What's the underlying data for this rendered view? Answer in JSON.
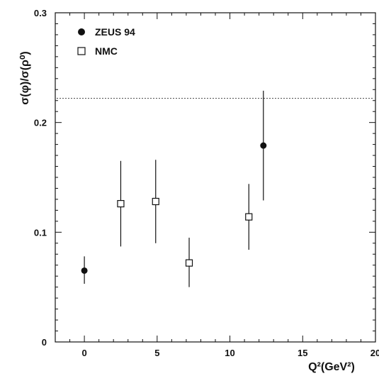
{
  "chart_data": {
    "type": "scatter",
    "xlabel": "Q²(GeV²)",
    "ylabel": "σ(φ)/σ(ρ⁰)",
    "xlim": [
      -2,
      20
    ],
    "ylim": [
      0,
      0.3
    ],
    "x_ticks": [
      0,
      5,
      10,
      15,
      20
    ],
    "x_tick_labels": [
      "0",
      "5",
      "10",
      "15",
      "20"
    ],
    "y_ticks": [
      0,
      0.1,
      0.2,
      0.3
    ],
    "y_tick_labels": [
      "0",
      "0.1",
      "0.2",
      "0.3"
    ],
    "grid": false,
    "legend_position": "top-left",
    "reference_line": {
      "y": 0.222,
      "style": "dotted"
    },
    "series": [
      {
        "name": "ZEUS 94",
        "marker": "filled-circle",
        "points": [
          {
            "x": 0.0,
            "y": 0.065,
            "ylow": 0.053,
            "yhigh": 0.078
          },
          {
            "x": 12.3,
            "y": 0.179,
            "ylow": 0.129,
            "yhigh": 0.229
          }
        ]
      },
      {
        "name": "NMC",
        "marker": "open-square",
        "points": [
          {
            "x": 2.5,
            "y": 0.126,
            "ylow": 0.087,
            "yhigh": 0.165
          },
          {
            "x": 4.9,
            "y": 0.128,
            "ylow": 0.09,
            "yhigh": 0.166
          },
          {
            "x": 7.2,
            "y": 0.072,
            "ylow": 0.05,
            "yhigh": 0.095
          },
          {
            "x": 11.3,
            "y": 0.114,
            "ylow": 0.084,
            "yhigh": 0.144
          }
        ]
      }
    ]
  }
}
